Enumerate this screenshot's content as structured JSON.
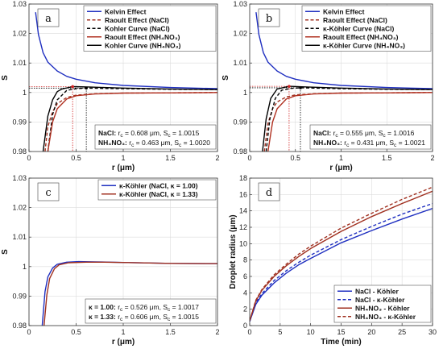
{
  "chart_data": [
    {
      "panel": "a",
      "type": "line",
      "xlabel": "r (μm)",
      "ylabel": "S",
      "xlim": [
        0,
        2
      ],
      "ylim": [
        0.98,
        1.03
      ],
      "xticks": [
        "0",
        "0.5",
        "1",
        "1.5",
        "2"
      ],
      "yticks": [
        "0.98",
        "0.99",
        "1",
        "1.01",
        "1.02",
        "1.03"
      ],
      "grid": true,
      "legend_position": "top-right",
      "legend": [
        "Kelvin Effect",
        "Raoult Effect (NaCl)",
        "Kohler Curve (NaCl)",
        "Raoult Effect (NH₄NO₃)",
        "Kohler Curve (NH₄NO₃)"
      ],
      "series": [
        {
          "name": "Kelvin Effect",
          "color": "#1f2fc0",
          "dash": "solid",
          "x": [
            0.07,
            0.1,
            0.15,
            0.2,
            0.3,
            0.4,
            0.5,
            0.7,
            1.0,
            1.5,
            2.0
          ],
          "y": [
            1.0272,
            1.0197,
            1.0135,
            1.0103,
            1.0073,
            1.0055,
            1.0045,
            1.0033,
            1.0024,
            1.0017,
            1.0013
          ]
        },
        {
          "name": "Raoult Effect (NaCl)",
          "color": "#a03020",
          "dash": "dashed",
          "x": [
            0.17,
            0.2,
            0.25,
            0.3,
            0.4,
            0.5,
            0.7,
            1.0,
            1.5,
            2.0
          ],
          "y": [
            0.98,
            0.9885,
            0.9935,
            0.9962,
            0.9983,
            0.9991,
            0.9996,
            0.9998,
            0.9999,
            1.0
          ]
        },
        {
          "name": "Kohler Curve (NaCl)",
          "color": "#000000",
          "dash": "dashed",
          "x": [
            0.2,
            0.25,
            0.3,
            0.4,
            0.5,
            0.608,
            0.8,
            1.0,
            1.5,
            2.0
          ],
          "y": [
            0.98,
            0.9925,
            0.9975,
            1.0007,
            1.0013,
            1.0015,
            1.0014,
            1.0013,
            1.0011,
            1.001
          ]
        },
        {
          "name": "Raoult Effect (NH₄NO₃)",
          "color": "#b03020",
          "dash": "solid",
          "x": [
            0.2,
            0.25,
            0.3,
            0.4,
            0.5,
            0.7,
            1.0,
            1.5,
            2.0
          ],
          "y": [
            0.98,
            0.99,
            0.9945,
            0.9978,
            0.9989,
            0.9995,
            0.9998,
            0.9999,
            1.0
          ]
        },
        {
          "name": "Kohler Curve (NH₄NO₃)",
          "color": "#000000",
          "dash": "solid",
          "x": [
            0.15,
            0.2,
            0.25,
            0.3,
            0.35,
            0.463,
            0.6,
            0.8,
            1.0,
            1.5,
            2.0
          ],
          "y": [
            0.98,
            0.992,
            0.9975,
            1.0003,
            1.0012,
            1.002,
            1.0019,
            1.0017,
            1.0015,
            1.0012,
            1.001
          ]
        }
      ],
      "annotation_lines": [
        "NaCl:   r_c = 0.608 μm,  S_c = 1.0015",
        "NH₄NO₃:  r_c = 0.463 μm,  S_c = 1.0020"
      ],
      "critical": [
        {
          "r": 0.608,
          "s": 1.0015,
          "color": "#000000"
        },
        {
          "r": 0.463,
          "s": 1.002,
          "color": "#d02020"
        }
      ]
    },
    {
      "panel": "b",
      "type": "line",
      "xlabel": "r (μm)",
      "ylabel": "S",
      "xlim": [
        0,
        2
      ],
      "ylim": [
        0.98,
        1.03
      ],
      "xticks": [
        "0",
        "0.5",
        "1",
        "1.5",
        "2"
      ],
      "yticks": [
        "0.98",
        "0.99",
        "1",
        "1.01",
        "1.02",
        "1.03"
      ],
      "grid": true,
      "legend_position": "top-right",
      "legend": [
        "Kelvin Effect",
        "Raoult Effect (NaCl)",
        "κ-Köhler Curve (NaCl)",
        "Raoult Effect (NH₄NO₃)",
        "κ-Köhler Curve (NH₄NO₃)"
      ],
      "series": [
        {
          "name": "Kelvin Effect",
          "color": "#1f2fc0",
          "dash": "solid",
          "x": [
            0.07,
            0.1,
            0.15,
            0.2,
            0.3,
            0.4,
            0.5,
            0.7,
            1.0,
            1.5,
            2.0
          ],
          "y": [
            1.0272,
            1.0197,
            1.0135,
            1.0103,
            1.0073,
            1.0055,
            1.0045,
            1.0033,
            1.0024,
            1.0017,
            1.0013
          ]
        },
        {
          "name": "Raoult Effect (NaCl)",
          "color": "#a03020",
          "dash": "dashed",
          "x": [
            0.16,
            0.2,
            0.25,
            0.3,
            0.4,
            0.5,
            0.7,
            1.0,
            1.5,
            2.0
          ],
          "y": [
            0.98,
            0.9895,
            0.9945,
            0.9968,
            0.9985,
            0.9992,
            0.9996,
            0.9998,
            0.9999,
            1.0
          ]
        },
        {
          "name": "κ-Köhler Curve (NaCl)",
          "color": "#000000",
          "dash": "dashed",
          "x": [
            0.18,
            0.22,
            0.28,
            0.35,
            0.45,
            0.555,
            0.7,
            1.0,
            1.5,
            2.0
          ],
          "y": [
            0.98,
            0.991,
            0.998,
            1.0008,
            1.0014,
            1.0016,
            1.0015,
            1.0013,
            1.0011,
            1.001
          ]
        },
        {
          "name": "Raoult Effect (NH₄NO₃)",
          "color": "#b03020",
          "dash": "solid",
          "x": [
            0.2,
            0.25,
            0.3,
            0.4,
            0.5,
            0.7,
            1.0,
            1.5,
            2.0
          ],
          "y": [
            0.98,
            0.99,
            0.9945,
            0.9978,
            0.9989,
            0.9995,
            0.9998,
            0.9999,
            1.0
          ]
        },
        {
          "name": "κ-Köhler Curve (NH₄NO₃)",
          "color": "#000000",
          "dash": "solid",
          "x": [
            0.14,
            0.18,
            0.23,
            0.3,
            0.431,
            0.6,
            0.8,
            1.0,
            1.5,
            2.0
          ],
          "y": [
            0.98,
            0.991,
            0.998,
            1.0012,
            1.0021,
            1.0019,
            1.0017,
            1.0015,
            1.0012,
            1.001
          ]
        }
      ],
      "annotation_lines": [
        "NaCl:   r_c = 0.555 μm,  S_c = 1.0016",
        "NH₄NO₃:  r_c = 0.431 μm,  S_c = 1.0021"
      ],
      "critical": [
        {
          "r": 0.555,
          "s": 1.0016,
          "color": "#000000"
        },
        {
          "r": 0.431,
          "s": 1.0021,
          "color": "#d02020"
        }
      ]
    },
    {
      "panel": "c",
      "type": "line",
      "xlabel": "r (μm)",
      "ylabel": "S",
      "xlim": [
        0,
        2
      ],
      "ylim": [
        0.98,
        1.03
      ],
      "xticks": [
        "0",
        "0.5",
        "1",
        "1.5",
        "2"
      ],
      "yticks": [
        "0.98",
        "0.99",
        "1",
        "1.01",
        "1.02",
        "1.03"
      ],
      "grid": true,
      "legend_position": "top-right",
      "legend": [
        "κ-Köhler (NaCl, κ = 1.00)",
        "κ-Köhler (NaCl, κ = 1.33)"
      ],
      "series": [
        {
          "name": "κ-Köhler (NaCl, κ = 1.00)",
          "color": "#1f2fc0",
          "dash": "solid",
          "x": [
            0.14,
            0.17,
            0.2,
            0.25,
            0.3,
            0.4,
            0.526,
            0.7,
            1.0,
            1.5,
            2.0
          ],
          "y": [
            0.98,
            0.9915,
            0.9965,
            0.9995,
            1.0008,
            1.0015,
            1.0017,
            1.0016,
            1.0014,
            1.0011,
            1.001
          ]
        },
        {
          "name": "κ-Köhler (NaCl, κ = 1.33)",
          "color": "#a03020",
          "dash": "solid",
          "x": [
            0.16,
            0.19,
            0.22,
            0.27,
            0.32,
            0.42,
            0.606,
            0.8,
            1.0,
            1.5,
            2.0
          ],
          "y": [
            0.98,
            0.9905,
            0.996,
            0.9993,
            1.0006,
            1.0013,
            1.0015,
            1.0015,
            1.0014,
            1.0011,
            1.001
          ]
        }
      ],
      "annotation_lines": [
        "κ = 1.00:  r_c = 0.526 μm,  S_c = 1.0017",
        "κ = 1.33:  r_c = 0.606 μm,  S_c = 1.0015"
      ]
    },
    {
      "panel": "d",
      "type": "line",
      "xlabel": "Time (min)",
      "ylabel": "Droplet radius (μm)",
      "xlim": [
        0,
        30
      ],
      "ylim": [
        0,
        18
      ],
      "xticks": [
        "0",
        "5",
        "10",
        "15",
        "20",
        "25",
        "30"
      ],
      "yticks": [
        "0",
        "2",
        "4",
        "6",
        "8",
        "10",
        "12",
        "14",
        "16",
        "18"
      ],
      "grid": true,
      "legend_position": "bottom-right",
      "legend": [
        "NaCl - Köhler",
        "NaCl - κ-Köhler",
        "NH₄NO₃ - Köhler",
        "NH₄NO₃ - κ-Köhler"
      ],
      "series": [
        {
          "name": "NaCl - Köhler",
          "color": "#1f2fc0",
          "dash": "solid",
          "x": [
            0,
            1,
            2,
            4,
            6,
            8,
            10,
            15,
            20,
            25,
            30
          ],
          "y": [
            0.5,
            2.6,
            3.7,
            5.2,
            6.4,
            7.4,
            8.2,
            10.1,
            11.6,
            13.0,
            14.3
          ]
        },
        {
          "name": "NaCl - κ-Köhler",
          "color": "#1f2fc0",
          "dash": "dashed",
          "x": [
            0,
            1,
            2,
            4,
            6,
            8,
            10,
            15,
            20,
            25,
            30
          ],
          "y": [
            0.5,
            2.8,
            3.9,
            5.5,
            6.7,
            7.7,
            8.6,
            10.5,
            12.1,
            13.6,
            14.9
          ]
        },
        {
          "name": "NH₄NO₃ - Köhler",
          "color": "#a03020",
          "dash": "solid",
          "x": [
            0,
            1,
            2,
            4,
            6,
            8,
            10,
            15,
            20,
            25,
            30
          ],
          "y": [
            0.6,
            3.0,
            4.3,
            6.0,
            7.3,
            8.4,
            9.4,
            11.5,
            13.3,
            14.9,
            16.4
          ]
        },
        {
          "name": "NH₄NO₃ - κ-Köhler",
          "color": "#a03020",
          "dash": "dashed",
          "x": [
            0,
            1,
            2,
            4,
            6,
            8,
            10,
            15,
            20,
            25,
            30
          ],
          "y": [
            0.6,
            3.1,
            4.4,
            6.2,
            7.5,
            8.7,
            9.7,
            11.9,
            13.7,
            15.4,
            16.9
          ]
        }
      ]
    }
  ]
}
